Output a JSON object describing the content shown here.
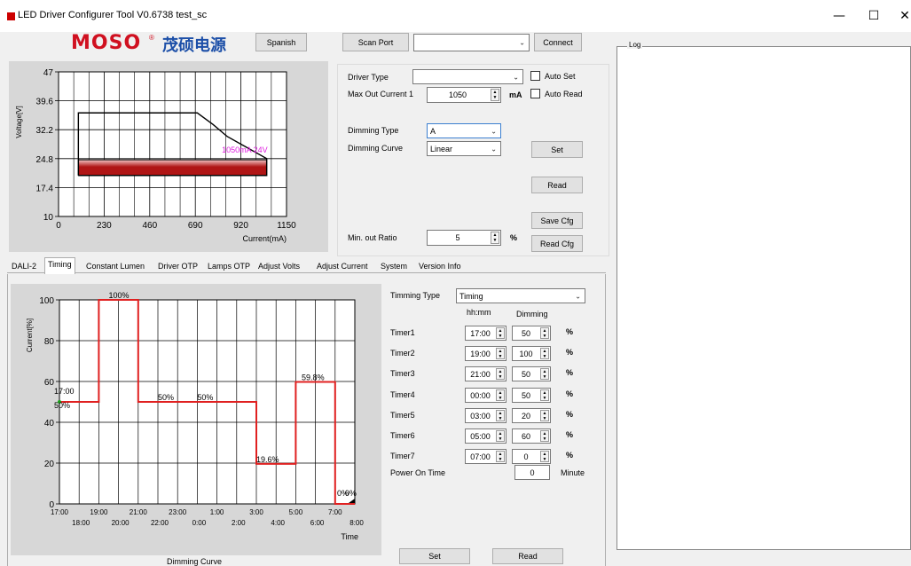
{
  "window": {
    "title": "LED Driver Configurer Tool V0.6738  test_sc",
    "minimize": "—",
    "maximize": "☐",
    "close": "✕"
  },
  "brand": {
    "name": "MOSO",
    "reg": "®",
    "cn": "茂硕电源"
  },
  "toolbar": {
    "spanish": "Spanish",
    "scan_port": "Scan Port",
    "port_value": "",
    "connect": "Connect"
  },
  "log": {
    "label": "Log"
  },
  "driver": {
    "driver_type_label": "Driver Type",
    "driver_type_value": "",
    "auto_set": "Auto Set",
    "max_out_label": "Max Out Current 1",
    "max_out_value": "1050",
    "max_out_unit": "mA",
    "auto_read": "Auto Read",
    "dimming_type_label": "Dimming Type",
    "dimming_type_value": "A",
    "dimming_curve_label": "Dimming Curve",
    "dimming_curve_value": "Linear",
    "set": "Set",
    "read": "Read",
    "save_cfg": "Save Cfg",
    "min_out_label": "Min. out Ratio",
    "min_out_value": "5",
    "min_out_unit": "%",
    "read_cfg": "Read Cfg"
  },
  "tabs": [
    "DALI-2",
    "Timing",
    "Constant Lumen",
    "Driver OTP",
    "Lamps OTP",
    "Adjust Volts",
    "Adjust Current",
    "System",
    "Version Info"
  ],
  "active_tab": "Timing",
  "timing": {
    "type_label": "Timming Type",
    "type_value": "Timing",
    "col_time": "hh:mm",
    "col_dim": "Dimming",
    "timers": [
      {
        "label": "Timer1",
        "time": "17:00",
        "dim": "50",
        "unit": "%"
      },
      {
        "label": "Timer2",
        "time": "19:00",
        "dim": "100",
        "unit": "%"
      },
      {
        "label": "Timer3",
        "time": "21:00",
        "dim": "50",
        "unit": "%"
      },
      {
        "label": "Timer4",
        "time": "00:00",
        "dim": "50",
        "unit": "%"
      },
      {
        "label": "Timer5",
        "time": "03:00",
        "dim": "20",
        "unit": "%"
      },
      {
        "label": "Timer6",
        "time": "05:00",
        "dim": "60",
        "unit": "%"
      },
      {
        "label": "Timer7",
        "time": "07:00",
        "dim": "0",
        "unit": "%"
      }
    ],
    "power_on_label": "Power On Time",
    "power_on_value": "0",
    "power_on_unit": "Minute",
    "set": "Set",
    "read": "Read",
    "caption": "Dimming Curve"
  },
  "chart_data": [
    {
      "type": "line",
      "ylabel": "Voltage[V]",
      "xlabel": "Current(mA)",
      "xlim": [
        0,
        1150
      ],
      "ylim": [
        10,
        47
      ],
      "x_ticks": [
        "0",
        "230",
        "460",
        "690",
        "920",
        "1150"
      ],
      "y_ticks": [
        "47",
        "39.6",
        "32.2",
        "24.8",
        "17.4",
        "10"
      ],
      "envelope": {
        "x": [
          100,
          100,
          700,
          780,
          850,
          920,
          1050,
          1050,
          100
        ],
        "y": [
          20.5,
          36.5,
          36.5,
          33.5,
          30.5,
          28.5,
          24.8,
          20.5,
          20.5
        ]
      },
      "operating_band": {
        "x": [
          100,
          1050
        ],
        "y": [
          20.5,
          24.5
        ]
      },
      "annotation": "1050mA 24V",
      "colors": {
        "band_dark": "#b01515",
        "band_light": "#f2c8c8",
        "annotation": "#e020e0"
      }
    },
    {
      "type": "line",
      "ylabel": "Current[%]",
      "xlabel": "Time",
      "ylim": [
        0,
        100
      ],
      "y_ticks": [
        "0",
        "20",
        "40",
        "60",
        "80",
        "100"
      ],
      "x_ticks_top": [
        "17:00",
        "19:00",
        "21:00",
        "23:00",
        "1:00",
        "3:00",
        "5:00",
        "7:00"
      ],
      "x_ticks_bottom": [
        "18:00",
        "20:00",
        "22:00",
        "0:00",
        "2:00",
        "4:00",
        "6:00",
        "8:00"
      ],
      "x_hours": [
        0,
        1,
        2,
        3,
        4,
        5,
        6,
        7,
        8,
        9,
        10,
        11,
        12,
        13,
        14,
        15
      ],
      "series": [
        {
          "x": [
            0,
            2,
            2,
            4,
            4,
            10,
            10,
            12,
            12,
            14,
            14,
            15
          ],
          "y": [
            50,
            50,
            100,
            100,
            50,
            50,
            19.6,
            19.6,
            59.8,
            59.8,
            0,
            0
          ]
        }
      ],
      "labels": [
        {
          "text": "100%",
          "x": 2.5,
          "y": 100
        },
        {
          "text": "50%",
          "x": 5,
          "y": 50
        },
        {
          "text": "50%",
          "x": 7,
          "y": 50
        },
        {
          "text": "59.8%",
          "x": 12.3,
          "y": 59.8
        },
        {
          "text": "19.6%",
          "x": 10,
          "y": 19.6
        },
        {
          "text": "17:00",
          "x": 0,
          "y": 53
        },
        {
          "text": "50%",
          "x": 0,
          "y": 46
        },
        {
          "text": "0%",
          "x": 14.1,
          "y": 3
        },
        {
          "text": "0%",
          "x": 14.5,
          "y": 3
        }
      ],
      "colors": {
        "line": "#e02020"
      }
    }
  ]
}
